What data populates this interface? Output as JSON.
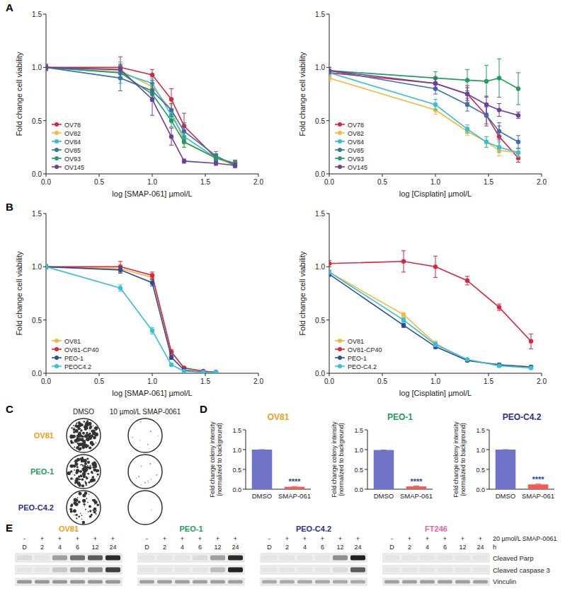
{
  "panel_labels": [
    "A",
    "B",
    "C",
    "D",
    "E"
  ],
  "chart_data": [
    {
      "type": "line",
      "xlabel": "log [SMAP-061] µmol/L",
      "ylabel": "Fold change cell viability",
      "x": [
        0,
        0.7,
        1.0,
        1.18,
        1.3,
        1.6,
        1.78
      ],
      "xlim": [
        0,
        2
      ],
      "ylim": [
        0,
        1.5
      ],
      "xticks": [
        {
          "value": 0,
          "label": "0.0"
        },
        {
          "value": 0.5,
          "label": "0.5"
        },
        {
          "value": 1,
          "label": "1.0"
        },
        {
          "value": 1.5,
          "label": "1.5"
        },
        {
          "value": 2,
          "label": "2.0"
        }
      ],
      "yticks": [
        {
          "value": 0,
          "label": "0.0"
        },
        {
          "value": 0.5,
          "label": "0.5"
        },
        {
          "value": 1,
          "label": "1.0"
        },
        {
          "value": 1.5,
          "label": "1.5"
        }
      ],
      "legend": "bottom-left",
      "marker": "circle",
      "series": [
        {
          "name": "OV78",
          "color": "#d7263d",
          "values": [
            1.0,
            1.0,
            0.93,
            0.7,
            0.45,
            0.15,
            0.1
          ],
          "errors": [
            0.03,
            0.1,
            0.05,
            0.1,
            0.12,
            0.04,
            0.03
          ]
        },
        {
          "name": "OV82",
          "color": "#f5b83d",
          "values": [
            1.0,
            0.97,
            0.82,
            0.6,
            0.3,
            0.15,
            0.08
          ],
          "errors": [
            0.02,
            0.08,
            0.06,
            0.05,
            0.05,
            0.03,
            0.02
          ]
        },
        {
          "name": "OV84",
          "color": "#35c0d5",
          "values": [
            1.0,
            0.95,
            0.85,
            0.55,
            0.35,
            0.15,
            0.1
          ],
          "errors": [
            0.02,
            0.1,
            0.05,
            0.05,
            0.06,
            0.03,
            0.02
          ]
        },
        {
          "name": "OV85",
          "color": "#3d6fb0",
          "values": [
            1.0,
            0.9,
            0.78,
            0.6,
            0.4,
            0.17,
            0.08
          ],
          "errors": [
            0.03,
            0.12,
            0.1,
            0.06,
            0.08,
            0.04,
            0.02
          ]
        },
        {
          "name": "OV93",
          "color": "#1f9e5e",
          "values": [
            1.0,
            0.95,
            0.75,
            0.5,
            0.3,
            0.15,
            0.1
          ],
          "errors": [
            0.02,
            0.06,
            0.05,
            0.06,
            0.05,
            0.03,
            0.02
          ]
        },
        {
          "name": "OV145",
          "color": "#6b3fa0",
          "values": [
            1.0,
            0.98,
            0.7,
            0.35,
            0.12,
            0.1,
            0.08
          ],
          "errors": [
            0.02,
            0.05,
            0.15,
            0.08,
            0.02,
            0.02,
            0.02
          ]
        }
      ]
    },
    {
      "type": "line",
      "xlabel": "log [Cisplatin] µmol/L",
      "ylabel": "Fold change cell viability",
      "x": [
        0,
        1.0,
        1.3,
        1.48,
        1.6,
        1.78
      ],
      "xlim": [
        0,
        2
      ],
      "ylim": [
        0,
        1.5
      ],
      "xticks": [
        {
          "value": 0,
          "label": "0.0"
        },
        {
          "value": 0.5,
          "label": "0.5"
        },
        {
          "value": 1,
          "label": "1.0"
        },
        {
          "value": 1.5,
          "label": "1.5"
        },
        {
          "value": 2,
          "label": "2.0"
        }
      ],
      "yticks": [
        {
          "value": 0,
          "label": "0.0"
        },
        {
          "value": 0.5,
          "label": "0.5"
        },
        {
          "value": 1,
          "label": "1.0"
        },
        {
          "value": 1.5,
          "label": "1.5"
        }
      ],
      "legend": "bottom-left",
      "marker": "circle",
      "series": [
        {
          "name": "OV78",
          "color": "#d7263d",
          "values": [
            0.95,
            0.85,
            0.75,
            0.55,
            0.35,
            0.15
          ],
          "errors": [
            0.03,
            0.05,
            0.08,
            0.1,
            0.1,
            0.04
          ]
        },
        {
          "name": "OV82",
          "color": "#f5b83d",
          "values": [
            0.9,
            0.6,
            0.4,
            0.3,
            0.22,
            0.2
          ],
          "errors": [
            0.03,
            0.04,
            0.04,
            0.05,
            0.05,
            0.04
          ]
        },
        {
          "name": "OV84",
          "color": "#35c0d5",
          "values": [
            0.95,
            0.65,
            0.42,
            0.3,
            0.25,
            0.2
          ],
          "errors": [
            0.03,
            0.05,
            0.04,
            0.05,
            0.05,
            0.04
          ]
        },
        {
          "name": "OV85",
          "color": "#3d6fb0",
          "values": [
            0.97,
            0.8,
            0.65,
            0.55,
            0.4,
            0.3
          ],
          "errors": [
            0.03,
            0.05,
            0.06,
            0.08,
            0.08,
            0.06
          ]
        },
        {
          "name": "OV93",
          "color": "#1f9e5e",
          "values": [
            0.97,
            0.9,
            0.88,
            0.87,
            0.9,
            0.8
          ],
          "errors": [
            0.03,
            0.06,
            0.1,
            0.15,
            0.18,
            0.15
          ]
        },
        {
          "name": "OV145",
          "color": "#6b3fa0",
          "values": [
            0.97,
            0.85,
            0.75,
            0.65,
            0.6,
            0.55
          ],
          "errors": [
            0.03,
            0.05,
            0.06,
            0.08,
            0.06,
            0.03
          ]
        }
      ]
    },
    {
      "type": "line",
      "xlabel": "log [SMAP-061] µmol/L",
      "ylabel": "Fold change cell viability",
      "x": [
        0,
        0.7,
        1.0,
        1.18,
        1.3,
        1.48,
        1.6
      ],
      "xlim": [
        0,
        2
      ],
      "ylim": [
        0,
        1.5
      ],
      "xticks": [
        {
          "value": 0,
          "label": "0.0"
        },
        {
          "value": 0.5,
          "label": "0.5"
        },
        {
          "value": 1,
          "label": "1.0"
        },
        {
          "value": 1.5,
          "label": "1.5"
        },
        {
          "value": 2,
          "label": "2.0"
        }
      ],
      "yticks": [
        {
          "value": 0,
          "label": "0.0"
        },
        {
          "value": 0.5,
          "label": "0.5"
        },
        {
          "value": 1,
          "label": "1.0"
        },
        {
          "value": 1.5,
          "label": "1.5"
        }
      ],
      "legend": "bottom-left",
      "marker": "circle",
      "series": [
        {
          "name": "OV81",
          "color": "#f5b83d",
          "values": [
            1.0,
            0.98,
            0.9,
            0.2,
            0.05,
            0.02,
            0.01
          ],
          "errors": [
            0.02,
            0.04,
            0.03,
            0.02,
            0.01,
            0.01,
            0.01
          ]
        },
        {
          "name": "OV81-CP40",
          "color": "#d7263d",
          "values": [
            1.0,
            1.0,
            0.92,
            0.2,
            0.05,
            0.02,
            0.01
          ],
          "errors": [
            0.02,
            0.05,
            0.03,
            0.02,
            0.01,
            0.01,
            0.01
          ]
        },
        {
          "name": "PEO-1",
          "color": "#2b4c9b",
          "values": [
            1.0,
            0.97,
            0.85,
            0.15,
            0.03,
            0.01,
            0.01
          ],
          "errors": [
            0.02,
            0.03,
            0.03,
            0.02,
            0.01,
            0.01,
            0.01
          ]
        },
        {
          "name": "PEOC4.2",
          "color": "#35c0d5",
          "values": [
            1.0,
            0.8,
            0.4,
            0.08,
            0.02,
            0.01,
            0.01
          ],
          "errors": [
            0.02,
            0.03,
            0.03,
            0.01,
            0.01,
            0.01,
            0.01
          ]
        }
      ]
    },
    {
      "type": "line",
      "xlabel": "log [Cisplatin] µmol/L",
      "ylabel": "Fold change cell viability",
      "x": [
        0,
        0.7,
        1.0,
        1.3,
        1.6,
        1.9
      ],
      "xlim": [
        0,
        2
      ],
      "ylim": [
        0,
        1.5
      ],
      "xticks": [
        {
          "value": 0,
          "label": "0.0"
        },
        {
          "value": 0.5,
          "label": "0.5"
        },
        {
          "value": 1,
          "label": "1.0"
        },
        {
          "value": 1.5,
          "label": "1.5"
        },
        {
          "value": 2,
          "label": "2.0"
        }
      ],
      "yticks": [
        {
          "value": 0,
          "label": "0.0"
        },
        {
          "value": 0.5,
          "label": "0.5"
        },
        {
          "value": 1,
          "label": "1.0"
        },
        {
          "value": 1.5,
          "label": "1.5"
        }
      ],
      "legend": "bottom-left",
      "marker": "circle",
      "series": [
        {
          "name": "OV81",
          "color": "#f5b83d",
          "values": [
            0.95,
            0.55,
            0.28,
            0.12,
            0.08,
            0.06
          ],
          "errors": [
            0.02,
            0.02,
            0.02,
            0.01,
            0.01,
            0.01
          ]
        },
        {
          "name": "OV81-CP40",
          "color": "#d7263d",
          "values": [
            1.03,
            1.05,
            1.0,
            0.87,
            0.62,
            0.3
          ],
          "errors": [
            0.03,
            0.1,
            0.1,
            0.04,
            0.03,
            0.07
          ]
        },
        {
          "name": "PEO-1",
          "color": "#2b4c9b",
          "values": [
            0.93,
            0.45,
            0.25,
            0.12,
            0.08,
            0.06
          ],
          "errors": [
            0.02,
            0.02,
            0.02,
            0.01,
            0.01,
            0.01
          ]
        },
        {
          "name": "PEO-C4.2",
          "color": "#35c0d5",
          "values": [
            0.95,
            0.5,
            0.27,
            0.13,
            0.07,
            0.05
          ],
          "errors": [
            0.02,
            0.02,
            0.02,
            0.01,
            0.01,
            0.01
          ]
        }
      ]
    },
    {
      "type": "bar",
      "title": "OV81",
      "ylabel": [
        "Fold change colony intensity",
        "(normalized to background)"
      ],
      "categories": [
        "DMSO",
        "SMAP-061"
      ],
      "values": [
        1.0,
        0.06
      ],
      "errors": [
        0,
        0.01
      ],
      "colors": [
        "#6f74c9",
        "#f25c54"
      ],
      "ylim": [
        0,
        1.5
      ],
      "yticks": [
        {
          "value": 0,
          "label": "0.0"
        },
        {
          "value": 0.5,
          "label": "0.5"
        },
        {
          "value": 1,
          "label": "1.0"
        },
        {
          "value": 1.5,
          "label": "1.5"
        }
      ],
      "annotations": [
        {
          "text": "****",
          "category": "SMAP-061"
        }
      ]
    },
    {
      "type": "bar",
      "title": "PEO-1",
      "ylabel": [
        "Fold change colony intensity",
        "(normalized to background)"
      ],
      "categories": [
        "DMSO",
        "SMAP-061"
      ],
      "values": [
        0.99,
        0.07
      ],
      "errors": [
        0,
        0.01
      ],
      "colors": [
        "#6f74c9",
        "#f25c54"
      ],
      "ylim": [
        0,
        1.5
      ],
      "yticks": [
        {
          "value": 0,
          "label": "0.0"
        },
        {
          "value": 0.5,
          "label": "0.5"
        },
        {
          "value": 1,
          "label": "1.0"
        },
        {
          "value": 1.5,
          "label": "1.5"
        }
      ],
      "annotations": [
        {
          "text": "****",
          "category": "SMAP-061"
        }
      ]
    },
    {
      "type": "bar",
      "title": "PEO-C4.2",
      "ylabel": [
        "Fold change colony intensity",
        "(normalized to background)"
      ],
      "categories": [
        "DMSO",
        "SMAP-061"
      ],
      "values": [
        1.0,
        0.12
      ],
      "errors": [
        0,
        0.01
      ],
      "colors": [
        "#6f74c9",
        "#f25c54"
      ],
      "ylim": [
        0,
        1.5
      ],
      "yticks": [
        {
          "value": 0,
          "label": "0.0"
        },
        {
          "value": 0.5,
          "label": "0.5"
        },
        {
          "value": 1,
          "label": "1.0"
        },
        {
          "value": 1.5,
          "label": "1.5"
        }
      ],
      "annotations": [
        {
          "text": "****",
          "category": "SMAP-061"
        }
      ]
    }
  ],
  "panel_c": {
    "columns": [
      "DMSO",
      "10 µmol/L SMAP-0061"
    ],
    "rows": [
      "OV81",
      "PEO-1",
      "PEO-C4.2"
    ]
  },
  "panel_e": {
    "treatment_row": [
      "-",
      "+",
      "+",
      "+",
      "+",
      "+"
    ],
    "time_row": [
      "D",
      "2",
      "4",
      "6",
      "12",
      "24"
    ],
    "dose_label": "20 µmol/L SMAP-0061",
    "time_unit": "h",
    "proteins": [
      "Cleaved Parp",
      "Cleaved caspase 3",
      "Vinculin"
    ],
    "blots": [
      {
        "cell_line": "OV81",
        "bands": [
          [
            0.05,
            0,
            0.35,
            0.6,
            0.7,
            0.95
          ],
          [
            0,
            0,
            0.15,
            0.35,
            0.45,
            0.85
          ],
          [
            0.4,
            0.4,
            0.4,
            0.4,
            0.4,
            0.4
          ]
        ]
      },
      {
        "cell_line": "PEO-1",
        "bands": [
          [
            0,
            0,
            0,
            0.05,
            0.35,
            0.95
          ],
          [
            0,
            0,
            0,
            0,
            0.2,
            1.0
          ],
          [
            0.35,
            0.35,
            0.35,
            0.35,
            0.35,
            0.35
          ]
        ]
      },
      {
        "cell_line": "PEO-C4.2",
        "bands": [
          [
            0,
            0,
            0,
            0,
            0.45,
            1.0
          ],
          [
            0,
            0,
            0,
            0,
            0.05,
            0.7
          ],
          [
            0.3,
            0.3,
            0.3,
            0.3,
            0.3,
            0.3
          ]
        ]
      },
      {
        "cell_line": "FT246",
        "bands": [
          [
            0,
            0,
            0,
            0,
            0,
            0
          ],
          [
            0,
            0,
            0,
            0,
            0,
            0
          ],
          [
            0.35,
            0.35,
            0.35,
            0.35,
            0.35,
            0.35
          ]
        ]
      }
    ]
  }
}
